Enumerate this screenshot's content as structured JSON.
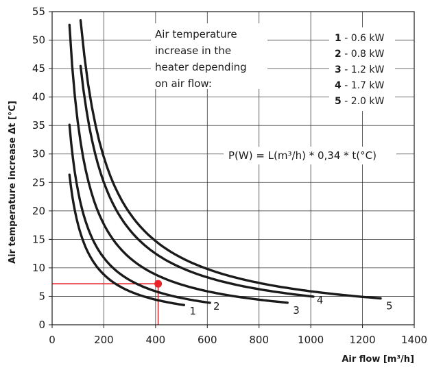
{
  "chart_data": {
    "type": "line",
    "xlabel": "Air flow [m³/h]",
    "ylabel": "Air temperature increase Δt [°C]",
    "xlim": [
      0,
      1400
    ],
    "ylim": [
      0,
      55
    ],
    "x_ticks": [
      "0",
      "200",
      "400",
      "600",
      "800",
      "1000",
      "1200",
      "1400"
    ],
    "y_ticks": [
      "0",
      "5",
      "10",
      "15",
      "20",
      "25",
      "30",
      "35",
      "40",
      "45",
      "50",
      "55"
    ],
    "grid": true,
    "note": [
      "Air temperature",
      "increase in the",
      "heater depending",
      "on air flow:"
    ],
    "formula": "P(W) = L(m³/h) * 0,34 * t(°C)",
    "legend": [
      {
        "num": "1",
        "sep": " - ",
        "text": "0.6 kW"
      },
      {
        "num": "2",
        "sep": " - ",
        "text": "0.8 kW"
      },
      {
        "num": "3",
        "sep": " - ",
        "text": "1.2 kW"
      },
      {
        "num": "4",
        "sep": " - ",
        "text": "1.7 kW"
      },
      {
        "num": "5",
        "sep": " - ",
        "text": "2.0 kW"
      }
    ],
    "series": [
      {
        "label": "1",
        "power_w": 600,
        "x": [
          67,
          100,
          150,
          200,
          250,
          300,
          400,
          510
        ],
        "y": [
          26.6,
          17.6,
          11.8,
          8.8,
          7.1,
          5.9,
          4.4,
          3.5
        ]
      },
      {
        "label": "2",
        "power_w": 800,
        "x": [
          67,
          100,
          150,
          200,
          300,
          400,
          500,
          610
        ],
        "y": [
          35.5,
          23.5,
          15.7,
          11.8,
          7.8,
          5.9,
          4.7,
          3.9
        ]
      },
      {
        "label": "3",
        "power_w": 1200,
        "x": [
          67,
          100,
          150,
          200,
          300,
          400,
          600,
          910
        ],
        "y": [
          53.4,
          35.3,
          23.5,
          17.6,
          11.8,
          8.8,
          5.9,
          3.9
        ]
      },
      {
        "label": "4",
        "power_w": 1700,
        "x": [
          110,
          150,
          200,
          300,
          400,
          600,
          800,
          1010
        ],
        "y": [
          45.5,
          33.3,
          25.0,
          16.7,
          12.5,
          8.3,
          6.3,
          5.0
        ]
      },
      {
        "label": "5",
        "power_w": 2000,
        "x": [
          110,
          150,
          200,
          300,
          400,
          600,
          900,
          1270
        ],
        "y": [
          53.5,
          39.2,
          29.4,
          19.6,
          14.7,
          9.8,
          6.5,
          4.6
        ]
      }
    ],
    "marker": {
      "x": 410,
      "y": 7.2,
      "color": "#e8232a"
    }
  }
}
